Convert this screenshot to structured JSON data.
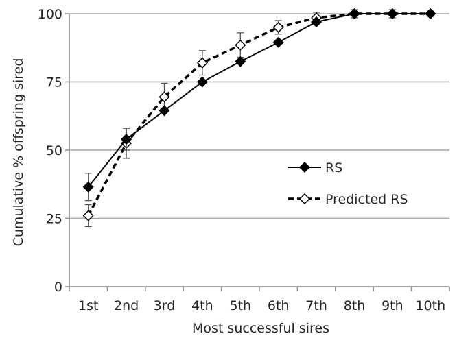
{
  "chart_data": {
    "type": "line",
    "title": "",
    "xlabel": "Most successful sires",
    "ylabel": "Cumulative % offspring sired",
    "categories": [
      "1st",
      "2nd",
      "3rd",
      "4th",
      "5th",
      "6th",
      "7th",
      "8th",
      "9th",
      "10th"
    ],
    "ylim": [
      0,
      100
    ],
    "yticks": [
      0,
      25,
      50,
      75,
      100
    ],
    "grid": "horizontal",
    "legend_position": "right-center",
    "series": [
      {
        "name": "RS",
        "style": "solid",
        "marker": "filled-diamond",
        "color": "#000000",
        "values": [
          36.5,
          54,
          64.5,
          75,
          82.5,
          89.5,
          97,
          100,
          100,
          100
        ],
        "error": [
          5,
          4,
          0,
          0,
          0,
          0,
          0,
          0,
          0,
          0
        ]
      },
      {
        "name": "Predicted RS",
        "style": "dashed",
        "marker": "open-diamond",
        "color": "#000000",
        "values": [
          26,
          52.5,
          69.5,
          82,
          88.5,
          95,
          98.5,
          100,
          100,
          100
        ],
        "error": [
          4,
          5.5,
          5,
          4.5,
          4.5,
          2.5,
          2,
          1.5,
          1.5,
          1
        ]
      }
    ]
  }
}
